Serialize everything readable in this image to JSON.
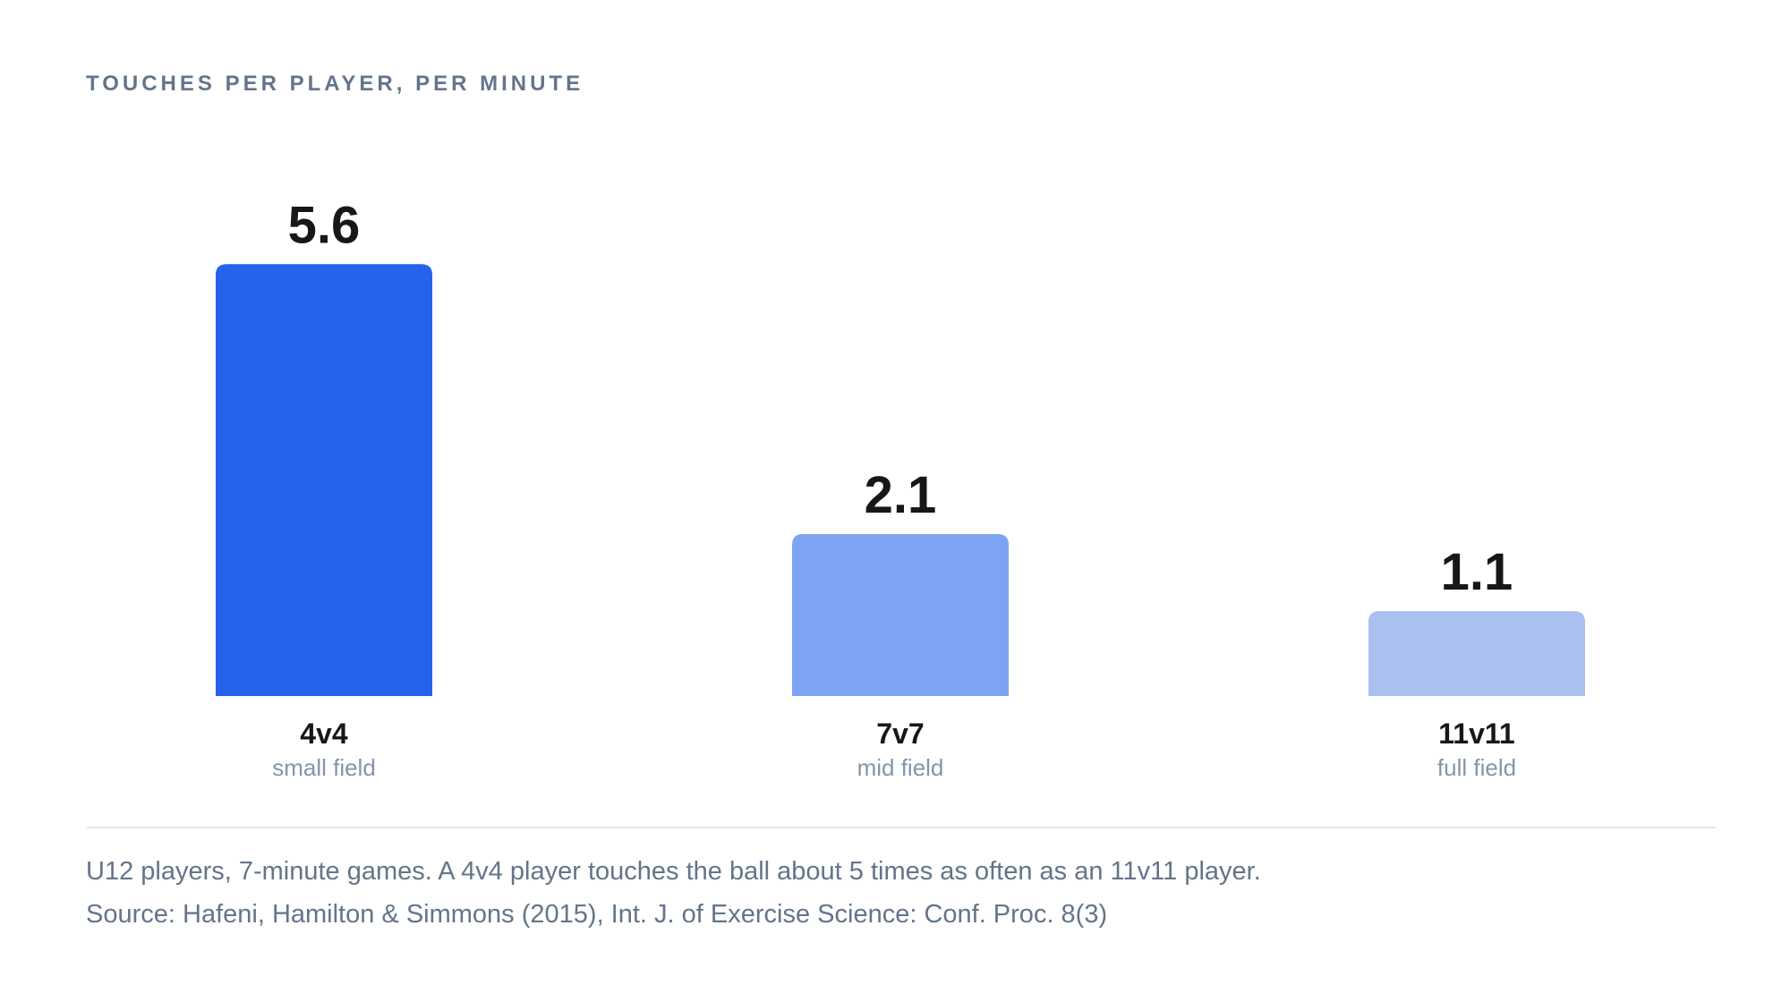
{
  "chart_data": {
    "type": "bar",
    "title": "TOUCHES PER PLAYER, PER MINUTE",
    "categories": [
      "4v4",
      "7v7",
      "11v11"
    ],
    "subcategories": [
      "small field",
      "mid field",
      "full field"
    ],
    "values": [
      5.6,
      2.1,
      1.1
    ],
    "value_labels": [
      "5.6",
      "2.1",
      "1.1"
    ],
    "colors": [
      "#2563eb",
      "#7fa3f3",
      "#aac1f0"
    ],
    "xlabel": "",
    "ylabel": "",
    "grid": false,
    "legend": "none"
  },
  "footer": {
    "caption": "U12 players, 7-minute games. A 4v4 player touches the ball about 5 times as often as an 11v11 player.",
    "source": "Source: Hafeni, Hamilton & Simmons (2015), Int. J. of Exercise Science: Conf. Proc. 8(3)"
  }
}
